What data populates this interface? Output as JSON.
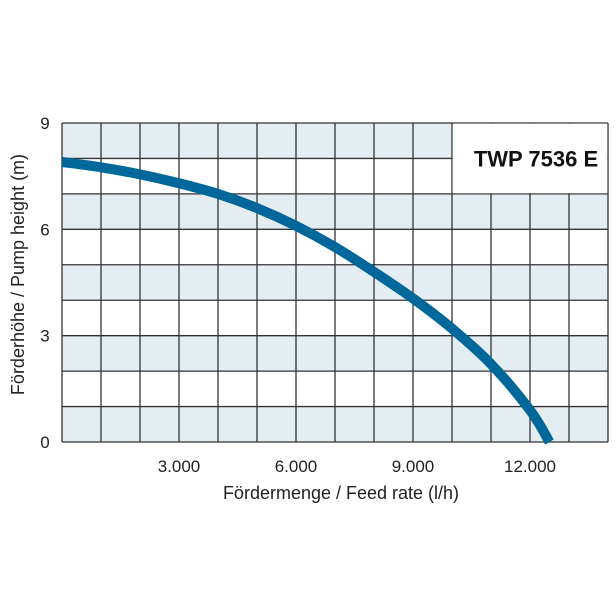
{
  "chart_data": {
    "type": "line",
    "title": "TWP 7536 E",
    "xlabel": "Fördermenge / Feed rate (l/h)",
    "ylabel": "Förderhöhe / Pump height (m)",
    "xlim": [
      0,
      14000
    ],
    "ylim": [
      0,
      9
    ],
    "x_ticks": [
      3000,
      6000,
      9000,
      12000
    ],
    "x_tick_labels": [
      "3.000",
      "6.000",
      "9.000",
      "12.000"
    ],
    "y_ticks": [
      0,
      3,
      6,
      9
    ],
    "y_tick_labels": [
      "0",
      "3",
      "6",
      "9"
    ],
    "grid": true,
    "grid_step": {
      "x": 1000,
      "y": 1
    },
    "series": [
      {
        "name": "TWP 7536 E",
        "color": "#00679a",
        "x": [
          0,
          1000,
          2000,
          3000,
          4000,
          5000,
          6000,
          7000,
          8000,
          9000,
          10000,
          11000,
          12000,
          12500
        ],
        "y": [
          7.9,
          7.75,
          7.55,
          7.3,
          7.0,
          6.6,
          6.1,
          5.5,
          4.8,
          4.05,
          3.2,
          2.2,
          0.9,
          0
        ]
      }
    ],
    "colors": {
      "band": "#e4edf1",
      "grid": "#333333"
    }
  }
}
